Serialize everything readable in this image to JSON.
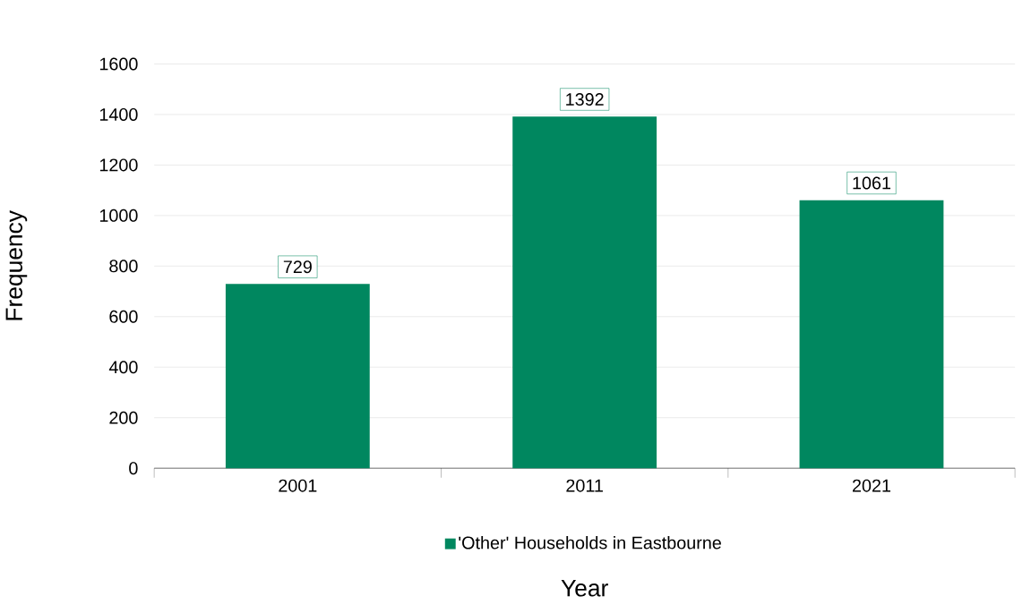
{
  "chart_data": {
    "type": "bar",
    "xlabel": "Year",
    "ylabel": "Frequency",
    "categories": [
      "2001",
      "2011",
      "2021"
    ],
    "series": [
      {
        "name": "'Other' Households in Eastbourne",
        "color": "#00875f",
        "values": [
          729,
          1392,
          1061
        ]
      }
    ],
    "ylim": [
      0,
      1600
    ],
    "yticks": [
      0,
      200,
      400,
      600,
      800,
      1000,
      1200,
      1400,
      1600
    ],
    "grid": "y",
    "legend": "bottom",
    "data_labels": true
  }
}
